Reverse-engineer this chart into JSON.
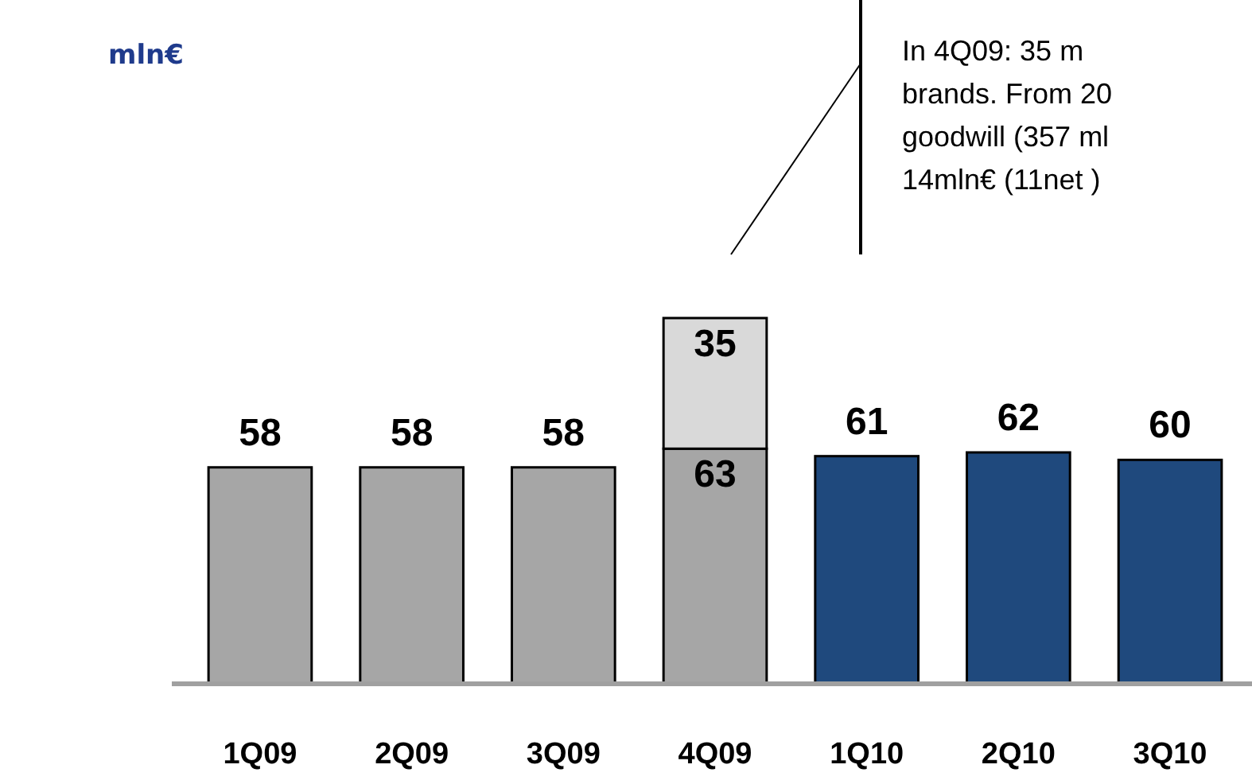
{
  "chart_data": {
    "type": "bar",
    "title": "mln€",
    "categories": [
      "1Q09",
      "2Q09",
      "3Q09",
      "4Q09",
      "1Q10",
      "2Q10",
      "3Q10"
    ],
    "stacked": true,
    "data_labels": true,
    "series": [
      {
        "colors": [
          "#a6a6a6",
          "#a6a6a6",
          "#a6a6a6",
          "#a6a6a6",
          "#1f497d",
          "#1f497d",
          "#1f497d"
        ],
        "values": [
          58,
          58,
          58,
          63,
          61,
          62,
          60
        ]
      },
      {
        "color": "#d9d9d9",
        "values": [
          null,
          null,
          null,
          35,
          null,
          null,
          null
        ]
      }
    ],
    "annotations": [
      "In 4Q09: 35 m\nbrands. From 20\ngoodwill (357 ml\n14mln€ (11net )"
    ]
  }
}
